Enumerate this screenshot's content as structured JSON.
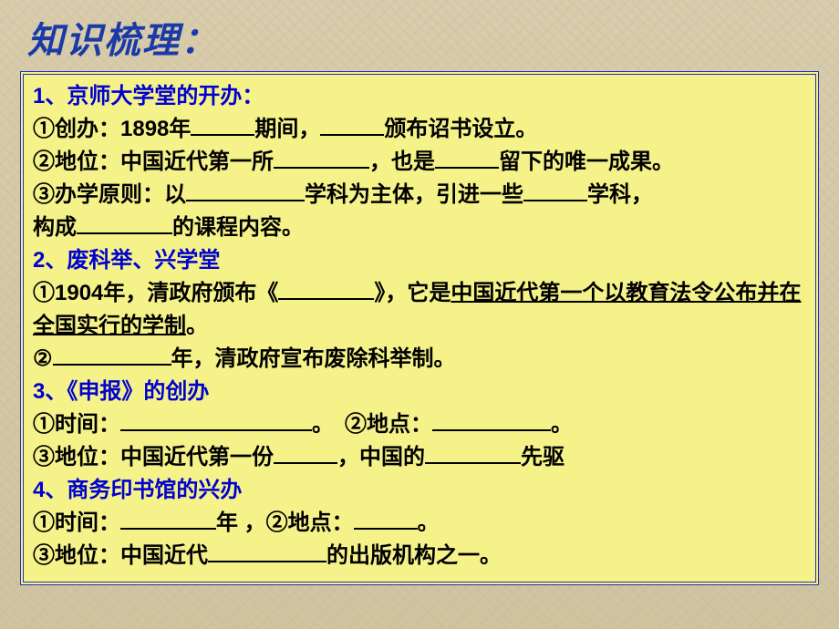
{
  "colors": {
    "title_color": "#1a3aa8",
    "heading_color": "#0000d0",
    "text_color": "#000000",
    "box_bg": "#f5f28a",
    "box_border": "#2030c0",
    "page_bg": "#d4c8a8"
  },
  "typography": {
    "title_fontsize": 40,
    "body_fontsize": 24,
    "line_height": 36
  },
  "title": "知识梳理：",
  "sections": {
    "s1": {
      "heading": "1、京师大学堂的开办：",
      "line1_a": "①创办：1898年",
      "line1_b": "期间，",
      "line1_c": "颁布诏书设立。",
      "line2_a": "②地位：中国近代第一所",
      "line2_b": "，也是",
      "line2_c": "留下的唯一成果。",
      "line3_a": "③办学原则：以",
      "line3_b": "学科为主体，引进一些",
      "line3_c": "学科，",
      "line4_a": "构成",
      "line4_b": "的课程内容。"
    },
    "s2": {
      "heading": "2、废科举、兴学堂",
      "line1_a": "①1904年，清政府颁布《",
      "line1_b": "》，它是",
      "line1_c": "中国近代第一个以教育法令公布并在全国实行的学制",
      "line1_d": "。",
      "line2_a": "②",
      "line2_b": "年，清政府宣布废除科举制。"
    },
    "s3": {
      "heading": "3、《申报》的创办",
      "line1_a": "①时间：",
      "line1_b": "。　②地点：",
      "line1_c": "。",
      "line2_a": "③地位：中国近代第一份",
      "line2_b": "，中国的",
      "line2_c": "先驱"
    },
    "s4": {
      "heading": "4、商务印书馆的兴办",
      "line1_a": "①时间：",
      "line1_b": "年 ，②地点：",
      "line1_c": "。",
      "line2_a": "③地位：中国近代",
      "line2_b": "的出版机构之一。"
    }
  }
}
